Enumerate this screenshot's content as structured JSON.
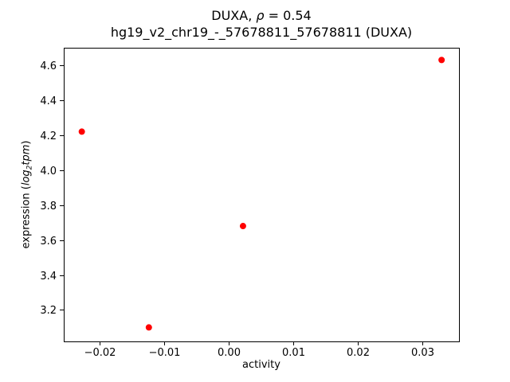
{
  "chart_data": {
    "type": "scatter",
    "title": "DUXA, ρ = 0.54",
    "title_parts": {
      "prefix": "DUXA, ",
      "rho_symbol": "ρ",
      "suffix": " = 0.54"
    },
    "subtitle": "hg19_v2_chr19_-_57678811_57678811 (DUXA)",
    "xlabel": "activity",
    "ylabel": "expression (log2tpm)",
    "ylabel_parts": {
      "prefix": "expression (",
      "italic_log": "log",
      "subscript": "2",
      "italic_tpm": "tpm",
      "suffix": ")"
    },
    "points": [
      {
        "activity": -0.0228,
        "expression": 4.22
      },
      {
        "activity": -0.0124,
        "expression": 3.1
      },
      {
        "activity": 0.0022,
        "expression": 3.68
      },
      {
        "activity": 0.033,
        "expression": 4.63
      }
    ],
    "xticks": [
      -0.02,
      -0.01,
      0,
      0.01,
      0.02,
      0.03
    ],
    "yticks": [
      3.2,
      3.4,
      3.6,
      3.8,
      4.0,
      4.2,
      4.4,
      4.6
    ],
    "xlim": [
      -0.0256,
      0.0357
    ],
    "ylim": [
      3.02,
      4.7
    ],
    "grid": false,
    "legend": "none",
    "marker_color": "#ff0000",
    "axis_color": "#000000",
    "background_color": "#ffffff"
  }
}
